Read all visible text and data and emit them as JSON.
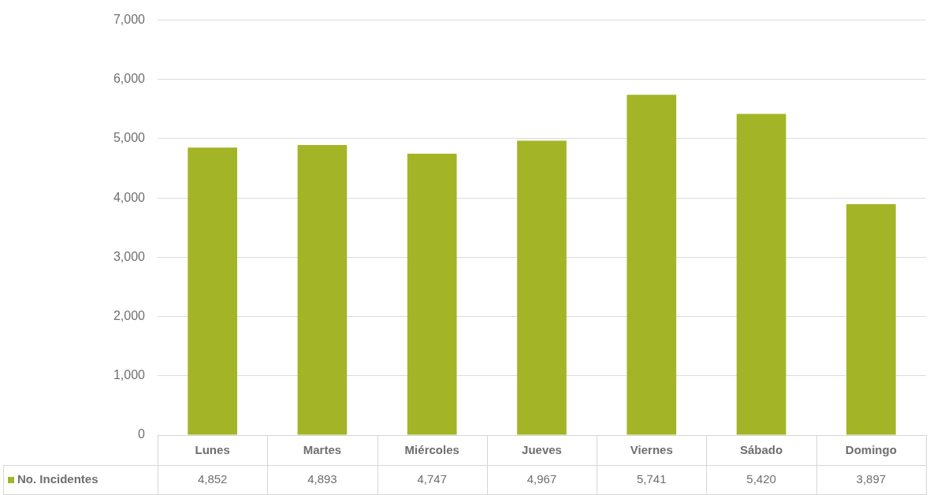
{
  "chart_data": {
    "type": "bar",
    "categories": [
      "Lunes",
      "Martes",
      "Miércoles",
      "Jueves",
      "Viernes",
      "Sábado",
      "Domingo"
    ],
    "series": [
      {
        "name": "No. Incidentes",
        "color": "#a3b526",
        "values": [
          4852,
          4893,
          4747,
          4967,
          5741,
          5420,
          3897
        ],
        "value_labels": [
          "4,852",
          "4,893",
          "4,747",
          "4,967",
          "5,741",
          "5,420",
          "3,897"
        ]
      }
    ],
    "ylim": [
      0,
      7000
    ],
    "yticks": [
      {
        "value": 0,
        "label": "0"
      },
      {
        "value": 1000,
        "label": "1,000"
      },
      {
        "value": 2000,
        "label": "2,000"
      },
      {
        "value": 3000,
        "label": "3,000"
      },
      {
        "value": 4000,
        "label": "4,000"
      },
      {
        "value": 5000,
        "label": "5,000"
      },
      {
        "value": 6000,
        "label": "6,000"
      },
      {
        "value": 7000,
        "label": "7,000"
      }
    ],
    "grid": "y",
    "legend": "bottom left"
  }
}
